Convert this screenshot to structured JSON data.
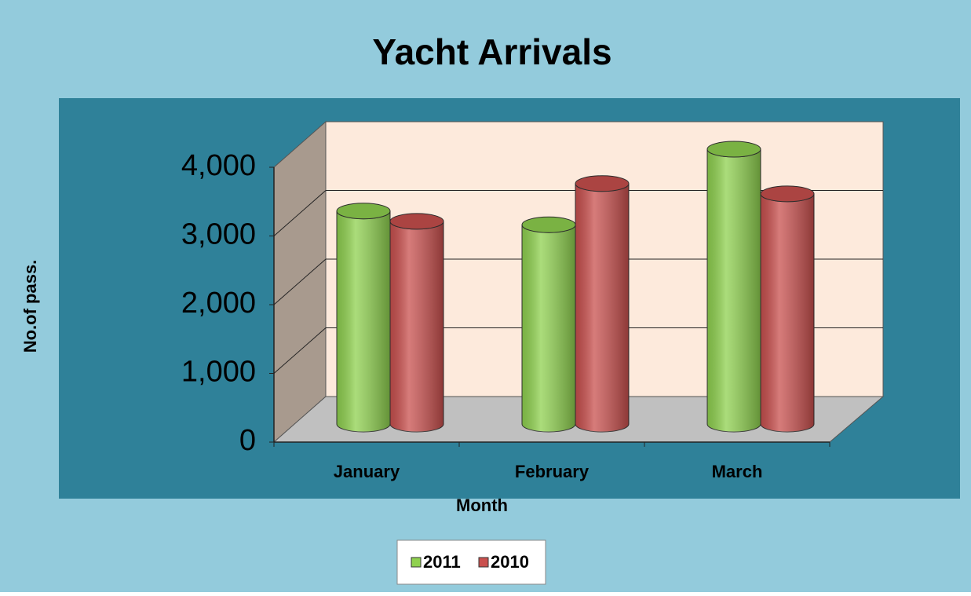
{
  "chart_data": {
    "type": "bar3d",
    "title": "Yacht Arrivals",
    "x_label": "Month",
    "y_label": "No.of pass.",
    "categories": [
      "January",
      "February",
      "March"
    ],
    "series": [
      {
        "name": "2011",
        "color": "#8fd14f",
        "values": [
          3100,
          2900,
          4000
        ]
      },
      {
        "name": "2010",
        "color": "#c9504e",
        "values": [
          2950,
          3500,
          3350
        ]
      }
    ],
    "ylim": [
      0,
      4000
    ],
    "yticks": [
      0,
      {
        "value": 1000,
        "label": "1,000"
      },
      {
        "value": 2000,
        "label": "2,000"
      },
      {
        "value": 3000,
        "label": "3,000"
      },
      {
        "value": 4000,
        "label": "4,000"
      }
    ],
    "grid": true,
    "legend": "bottom"
  }
}
